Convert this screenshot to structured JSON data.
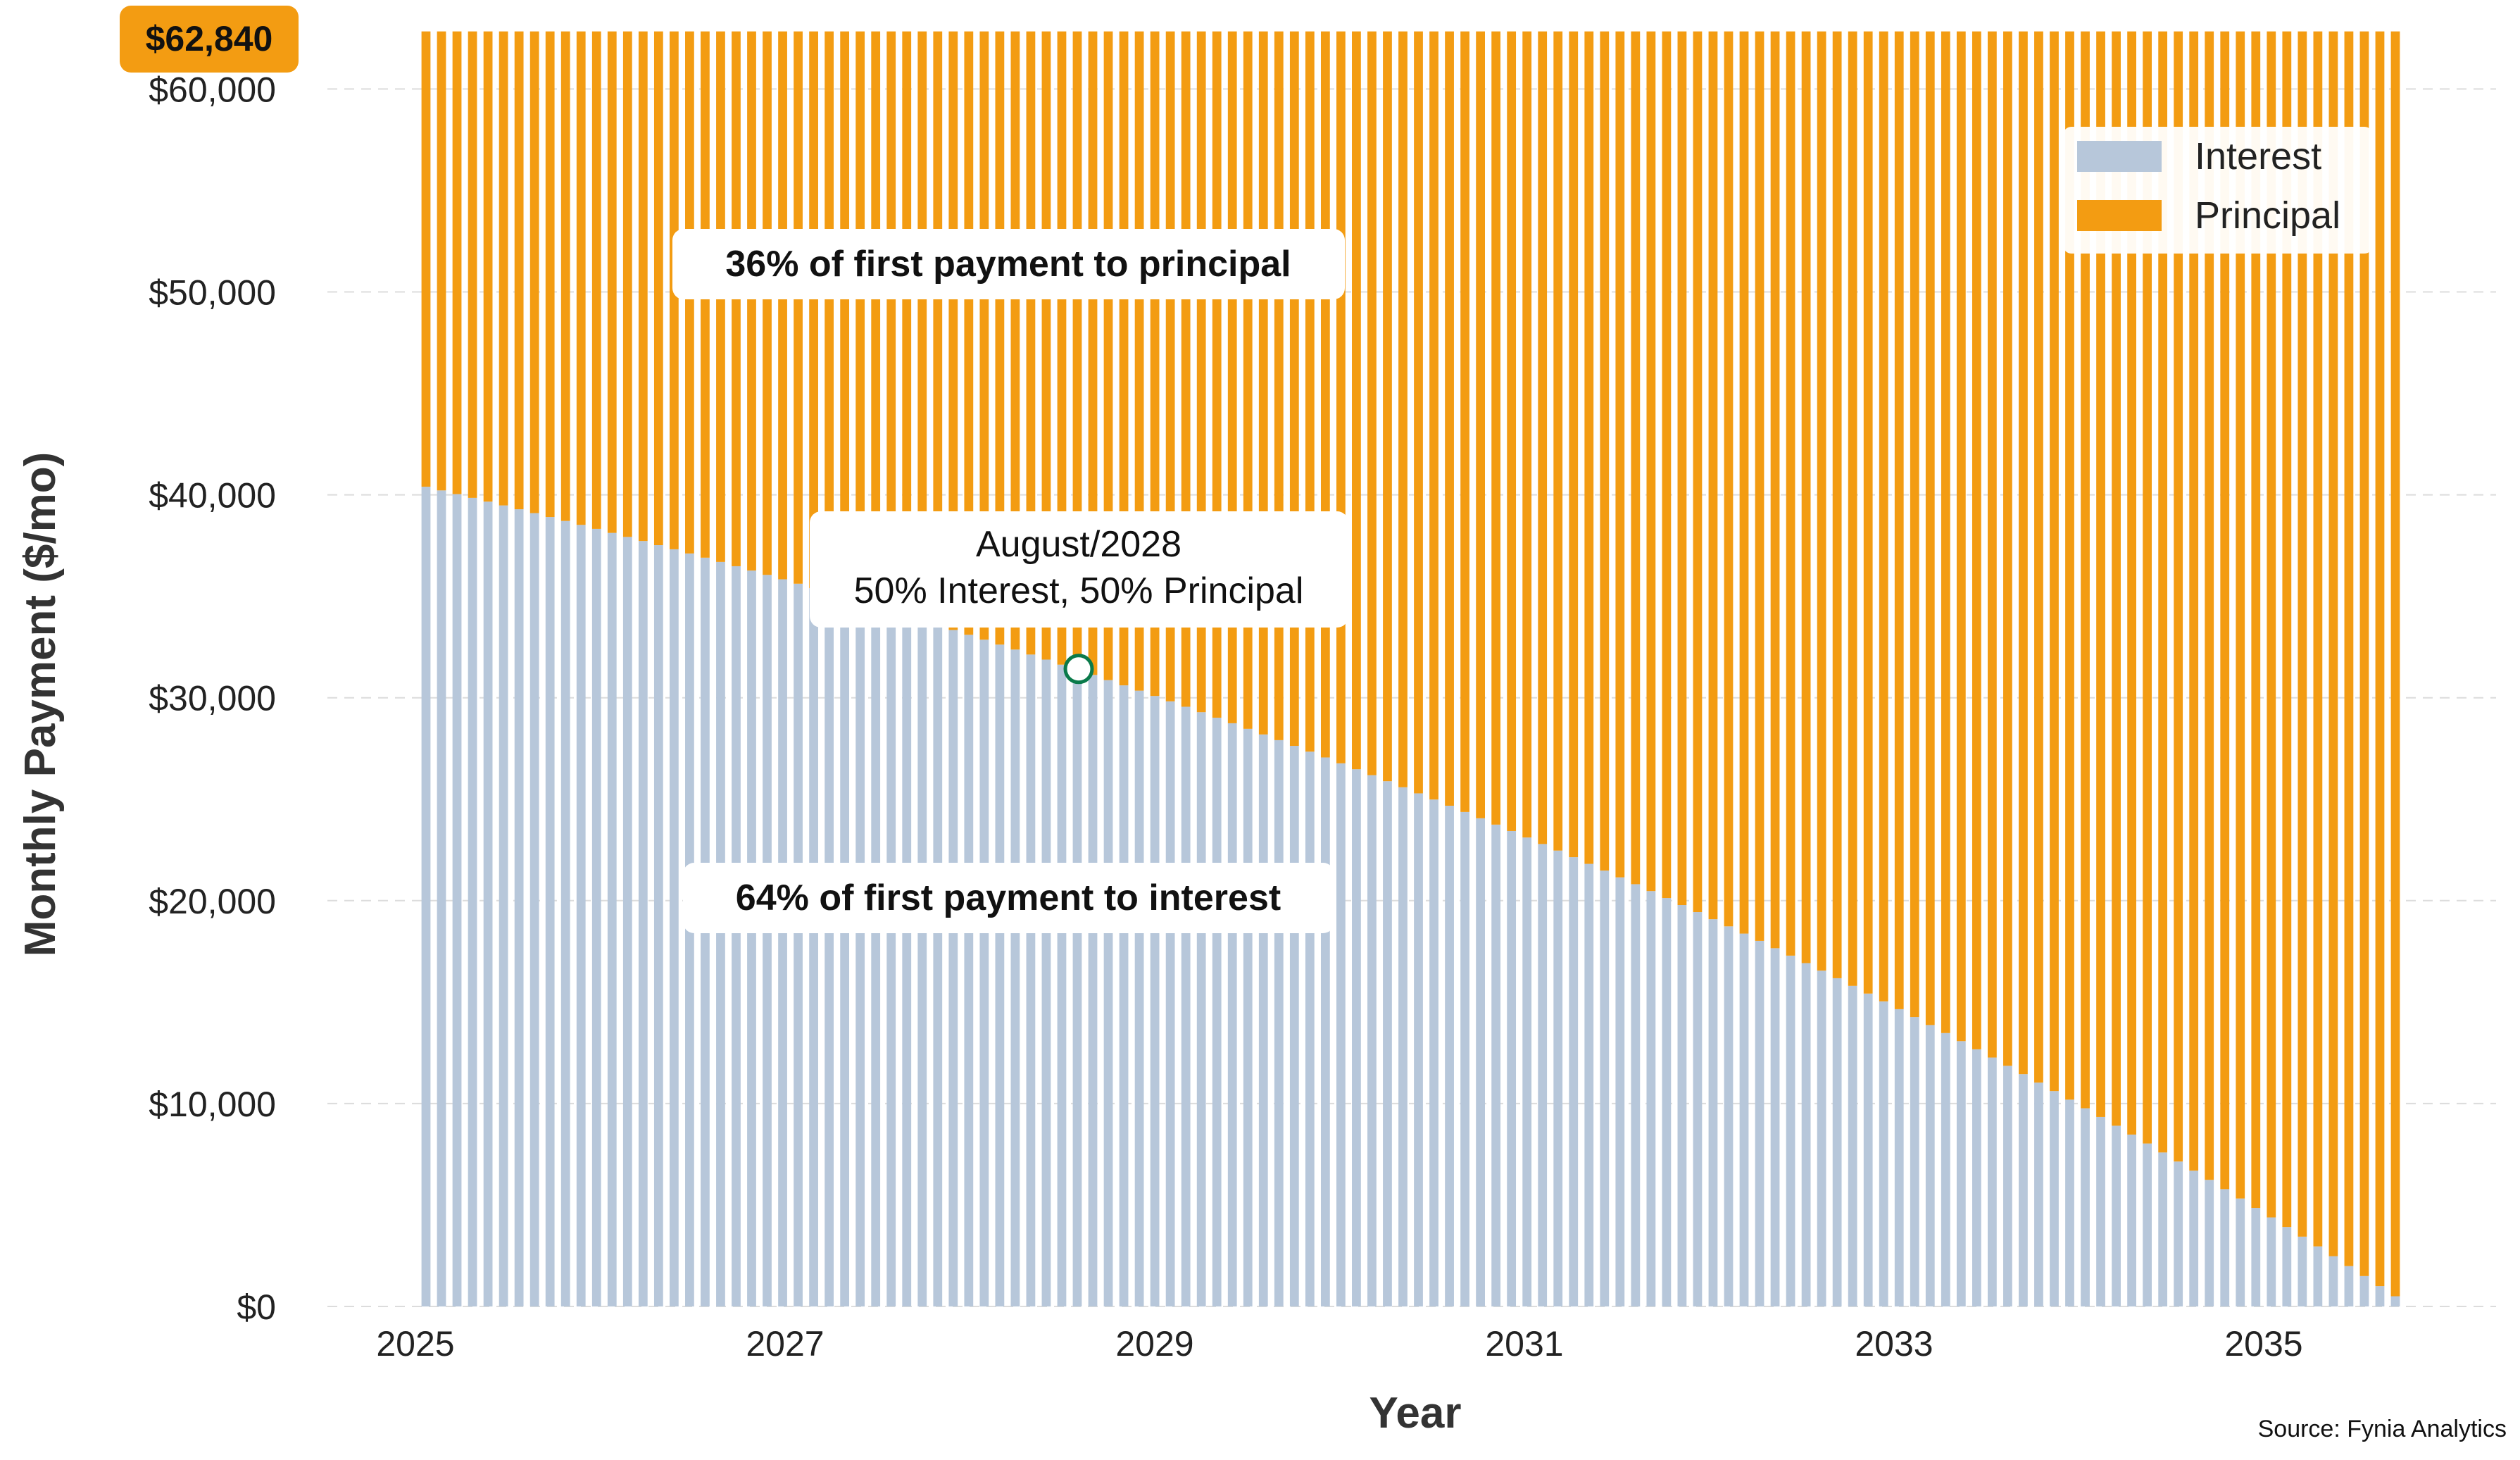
{
  "chart_data": {
    "type": "bar",
    "stacked": true,
    "xlabel": "Year",
    "ylabel": "Monthly Payment ($/mo)",
    "x_tick_labels": [
      "2025",
      "2027",
      "2029",
      "2031",
      "2033",
      "2035"
    ],
    "y_tick_labels": [
      "$0",
      "$10,000",
      "$20,000",
      "$30,000",
      "$40,000",
      "$50,000",
      "$60,000"
    ],
    "ylim": [
      0,
      63000
    ],
    "grid": "horizontal dashed",
    "legend_position": "top-right",
    "months": 128,
    "start": "Feb 2025",
    "end": "Sep 2035",
    "monthly_payment": 62840,
    "first_interest": 40400,
    "first_principal": 22440,
    "series": [
      {
        "name": "Interest",
        "color": "#b7c7da"
      },
      {
        "name": "Principal",
        "color": "#f39c12"
      }
    ],
    "total_label": "$62,840",
    "annotations": {
      "principal_share": "36% of first payment to principal",
      "interest_share": "64% of first payment to interest",
      "crossover_date": "August/2028",
      "crossover_text": "50% Interest, 50% Principal",
      "crossover_value": 31420
    },
    "source": "Source: Fynia Analytics"
  }
}
